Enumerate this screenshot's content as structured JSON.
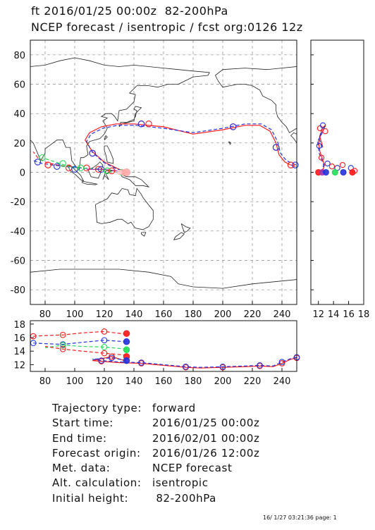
{
  "header": {
    "line1": "ft 2016/01/25 00:00z  82-200hPa",
    "line2": "NCEP forecast / isentropic / fcst org:0126 12z"
  },
  "colors": {
    "red": "#ff1a1a",
    "blue": "#2233dd",
    "green": "#22dd55",
    "magenta": "#aa33aa",
    "grid": "#888888",
    "coast": "#222222"
  },
  "chart_data": [
    {
      "type": "line",
      "panel": "map",
      "x_ticks": [
        80,
        100,
        120,
        140,
        160,
        180,
        200,
        220,
        240
      ],
      "y_ticks": [
        80,
        60,
        40,
        20,
        0,
        -20,
        -40,
        -60,
        -80
      ],
      "xlim": [
        70,
        250
      ],
      "ylim": [
        -90,
        90
      ],
      "grid": true,
      "series": [
        {
          "color": "red",
          "style": "solid",
          "x": [
            135,
            128,
            120,
            112,
            107,
            110,
            118,
            128,
            140,
            160,
            180,
            200,
            215,
            225,
            232,
            236,
            238,
            242,
            246,
            249
          ],
          "y": [
            0,
            3,
            7,
            14,
            22,
            27,
            31,
            33,
            33,
            31,
            26,
            29,
            32,
            32,
            28,
            20,
            12,
            7,
            5,
            4
          ]
        },
        {
          "color": "blue",
          "style": "dashed",
          "x": [
            135,
            128,
            120,
            112,
            108,
            111,
            119,
            129,
            141,
            160,
            180,
            200,
            215,
            226,
            233,
            237,
            239,
            243,
            247,
            250
          ],
          "y": [
            0,
            2.5,
            6.5,
            13.5,
            21,
            26,
            30,
            32,
            32,
            30,
            27,
            30,
            33,
            33,
            29,
            21,
            13,
            8,
            6,
            5
          ]
        },
        {
          "color": "red",
          "style": "dashed",
          "x": [
            135,
            125,
            115,
            105,
            95,
            88,
            80,
            75,
            72
          ],
          "y": [
            0,
            1,
            2,
            3,
            4,
            5,
            7,
            10,
            14
          ]
        },
        {
          "color": "blue",
          "style": "dashed",
          "x": [
            135,
            124,
            113,
            103,
            93,
            85,
            78,
            72
          ],
          "y": [
            0,
            1.5,
            2.5,
            3,
            4,
            5,
            6,
            8
          ]
        },
        {
          "color": "green",
          "style": "dashed",
          "x": [
            135,
            126,
            116,
            106,
            96,
            90,
            84,
            78
          ],
          "y": [
            0,
            1,
            2,
            3,
            4,
            6,
            8,
            10
          ]
        },
        {
          "color": "magenta",
          "style": "solid",
          "x": [
            135,
            128,
            120,
            114,
            108
          ],
          "y": [
            0,
            1,
            2,
            2,
            2
          ]
        }
      ],
      "markers": [
        {
          "color": "red",
          "x": [
            112,
            145,
            150,
            207,
            236,
            246
          ],
          "y": [
            13,
            33,
            33,
            31,
            17,
            5
          ]
        },
        {
          "color": "blue",
          "x": [
            112,
            145,
            207,
            236,
            249
          ],
          "y": [
            13,
            33,
            31,
            17,
            5
          ]
        },
        {
          "color": "red",
          "x": [
            82,
            96,
            108,
            116,
            125
          ],
          "y": [
            5,
            3,
            3,
            2,
            1
          ]
        },
        {
          "color": "blue",
          "x": [
            75,
            88,
            100,
            118
          ],
          "y": [
            7,
            4,
            2,
            2
          ]
        },
        {
          "color": "green",
          "x": [
            78,
            92,
            104,
            122,
            132
          ],
          "y": [
            10,
            6,
            3,
            1,
            0
          ]
        }
      ],
      "origin": {
        "x": 135,
        "y": 0
      }
    },
    {
      "type": "line",
      "panel": "latitude-height",
      "x_ticks": [
        12,
        14,
        16,
        18
      ],
      "xlim": [
        11,
        18
      ],
      "ylim": [
        -90,
        90
      ],
      "series": [
        {
          "color": "red",
          "style": "solid",
          "x": [
            12.5,
            12.8,
            12.2,
            12.0,
            12.6,
            12.9,
            12.5,
            12.2,
            12.6
          ],
          "y": [
            0,
            5,
            14,
            22,
            28,
            32,
            30,
            24,
            17
          ]
        },
        {
          "color": "blue",
          "style": "dashed",
          "x": [
            12.4,
            12.7,
            12.1,
            11.9,
            12.5,
            12.8,
            12.4,
            12.1,
            12.5
          ],
          "y": [
            0,
            5,
            13,
            21,
            27,
            31,
            29,
            23,
            16
          ]
        }
      ],
      "origin_markers": [
        {
          "color": "red",
          "x": 12.0
        },
        {
          "color": "magenta",
          "x": 12.5
        },
        {
          "color": "blue",
          "x": 13.0
        },
        {
          "color": "green",
          "x": 14.2
        },
        {
          "color": "blue",
          "x": 15.3
        },
        {
          "color": "red",
          "x": 16.5
        }
      ]
    },
    {
      "type": "line",
      "panel": "longitude-height",
      "x_ticks": [
        80,
        100,
        120,
        140,
        160,
        180,
        200,
        220,
        240
      ],
      "y_ticks": [
        18,
        16,
        14,
        12
      ],
      "xlim": [
        70,
        250
      ],
      "ylim": [
        11,
        18.5
      ],
      "series": [
        {
          "color": "red",
          "style": "solid",
          "x": [
            135,
            125,
            112,
            118,
            130,
            145,
            160,
            175,
            185,
            200,
            215,
            225,
            234,
            240,
            246,
            250
          ],
          "y": [
            12.5,
            13.2,
            12.6,
            12.5,
            12.3,
            12.2,
            11.9,
            11.6,
            11.5,
            11.6,
            11.7,
            11.8,
            11.7,
            12.2,
            12.8,
            13.0
          ]
        },
        {
          "color": "blue",
          "style": "dashed",
          "x": [
            135,
            125,
            112,
            118,
            130,
            145,
            160,
            175,
            185,
            200,
            215,
            225,
            234,
            240,
            246,
            250
          ],
          "y": [
            12.6,
            13.0,
            12.8,
            12.6,
            12.4,
            12.3,
            12.0,
            11.7,
            11.6,
            11.7,
            11.8,
            11.9,
            11.8,
            12.4,
            12.9,
            13.1
          ]
        },
        {
          "color": "red",
          "style": "dashed",
          "x": [
            135,
            120,
            105,
            92,
            80,
            72
          ],
          "y": [
            16.5,
            16.9,
            16.7,
            16.4,
            16.3,
            16.2
          ]
        },
        {
          "color": "blue",
          "style": "dashed",
          "x": [
            135,
            120,
            105,
            92,
            80,
            72
          ],
          "y": [
            15.4,
            15.6,
            15.3,
            15.0,
            15.1,
            15.2
          ]
        },
        {
          "color": "green",
          "style": "dashed",
          "x": [
            135,
            120,
            105,
            92,
            80
          ],
          "y": [
            14.3,
            14.6,
            14.7,
            14.9,
            14.5
          ]
        },
        {
          "color": "red",
          "style": "dashed",
          "x": [
            135,
            120,
            105,
            92,
            80
          ],
          "y": [
            13.4,
            13.7,
            14.0,
            14.3,
            14.7
          ]
        }
      ],
      "origin_markers": [
        {
          "color": "red",
          "y": 16.6
        },
        {
          "color": "blue",
          "y": 15.4
        },
        {
          "color": "green",
          "y": 14.2
        },
        {
          "color": "red",
          "y": 13.2
        },
        {
          "color": "blue",
          "y": 12.6
        }
      ]
    }
  ],
  "info": [
    {
      "label": "Trajectory type:",
      "value": "forward"
    },
    {
      "label": "Start time:",
      "value": "2016/01/25 00:00z"
    },
    {
      "label": "End time:",
      "value": "2016/02/01 00:00z"
    },
    {
      "label": "Forecast origin:",
      "value": "2016/01/26 12:00z"
    },
    {
      "label": "Met. data:",
      "value": "NCEP forecast"
    },
    {
      "label": "Alt. calculation:",
      "value": "isentropic"
    },
    {
      "label": "Initial height:",
      "value": " 82-200hPa"
    }
  ],
  "footer": "16/ 1/27 03:21:36 page: 1"
}
